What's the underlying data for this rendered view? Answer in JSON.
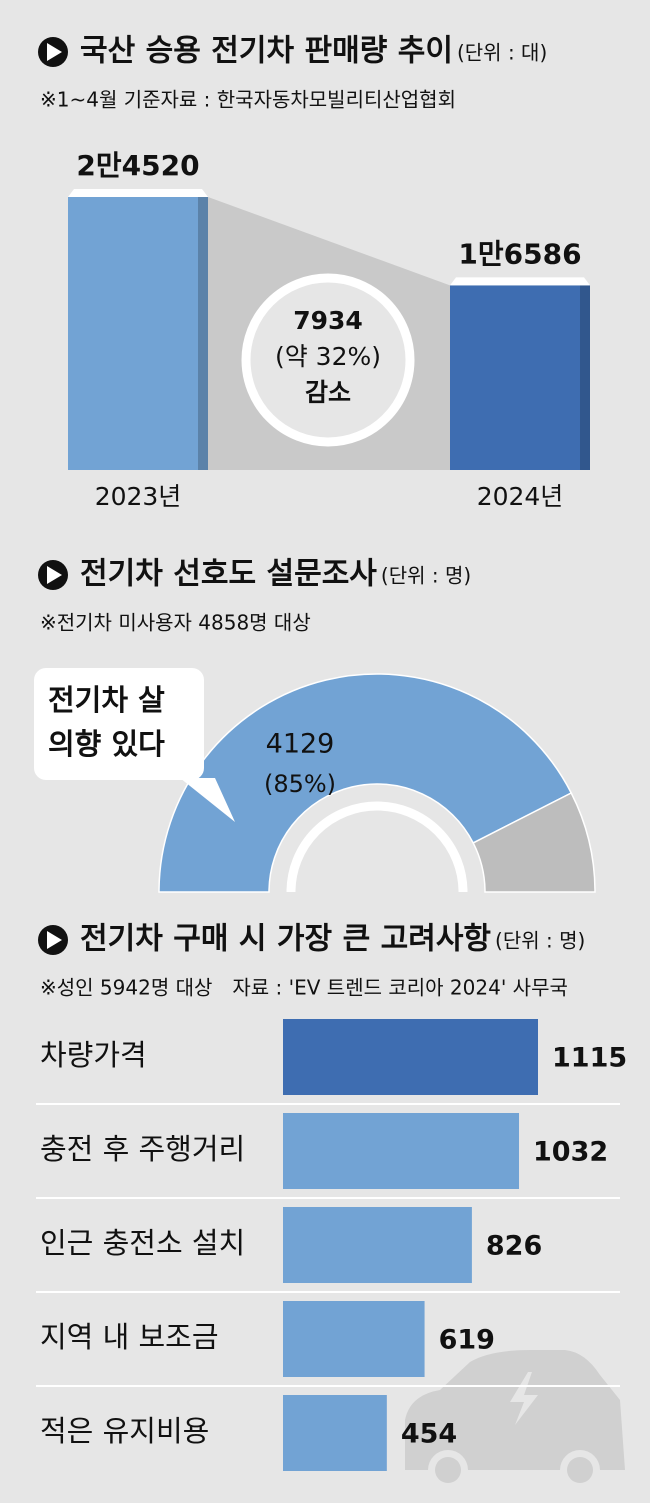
{
  "chart_data": [
    {
      "type": "bar",
      "title": "국산 승용 전기차 판매량 추이",
      "unit": "(단위 : 대)",
      "note": "※1~4월 기준자료 : 한국자동차모빌리티산업협회",
      "categories": [
        "2023년",
        "2024년"
      ],
      "values": [
        24520,
        16586
      ],
      "value_labels": [
        "2만4520",
        "1만6586"
      ],
      "colors": [
        "#72a3d4",
        "#3e6db1"
      ],
      "annotation": [
        "7934",
        "(약 32%)",
        "감소"
      ]
    },
    {
      "type": "pie",
      "title": "전기차 선호도 설문조사",
      "unit": "(단위 : 명)",
      "note": "※전기차 미사용자 4858명 대상",
      "categories": [
        "전기차 살 의향 있다",
        null
      ],
      "values": [
        4129,
        729
      ],
      "colors": [
        "#72a3d4",
        "#bdbdbd"
      ],
      "annotation": "(85%)"
    },
    {
      "type": "hbar",
      "title": "전기차 구매 시 가장 큰 고려사항",
      "unit": "(단위 : 명)",
      "note": "※성인 5942명 대상",
      "source": "자료 : 'EV 트렌드 코리아 2024' 사무국",
      "categories": [
        "차량가격",
        "충전 후 주행거리",
        "인근 충전소 설치",
        "지역 내 보조금",
        "적은 유지비용"
      ],
      "values": [
        1115,
        1032,
        826,
        619,
        454
      ],
      "colors": [
        "#3e6db1",
        "#72a3d4",
        "#72a3d4",
        "#72a3d4",
        "#72a3d4"
      ]
    }
  ]
}
